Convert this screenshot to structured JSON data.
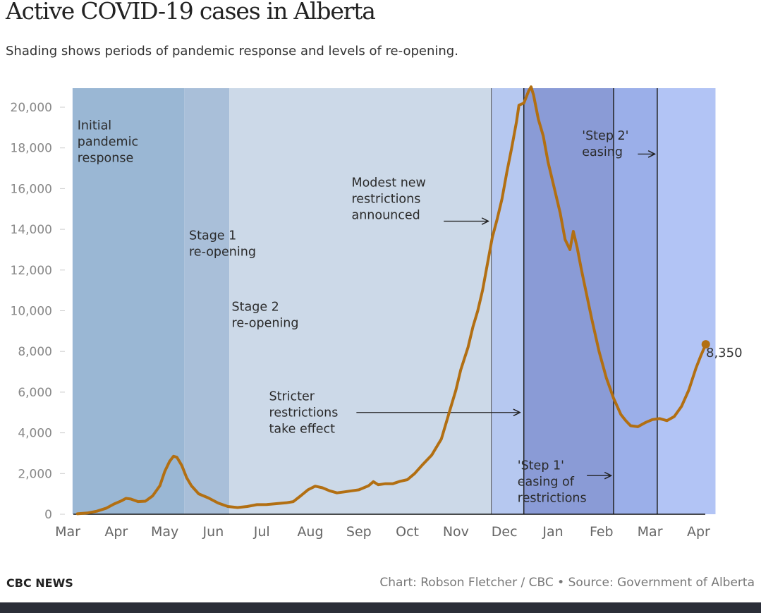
{
  "title": "Active COVID-19 cases in Alberta",
  "subtitle": "Shading shows periods of pandemic response and levels of re-opening.",
  "footer": {
    "brand": "CBC NEWS",
    "credit": "Chart: Robson Fletcher / CBC • Source: Government of Alberta"
  },
  "chart_data": {
    "type": "line",
    "title": "Active COVID-19 cases in Alberta",
    "subtitle": "Shading shows periods of pandemic response and levels of re-opening.",
    "xlabel": "",
    "ylabel": "",
    "x_ticks": [
      "Mar",
      "Apr",
      "May",
      "Jun",
      "Jul",
      "Aug",
      "Sep",
      "Oct",
      "Nov",
      "Dec",
      "Jan",
      "Feb",
      "Mar",
      "Apr"
    ],
    "ylim": [
      0,
      21000
    ],
    "y_ticks": [
      0,
      2000,
      4000,
      6000,
      8000,
      10000,
      12000,
      14000,
      16000,
      18000,
      20000
    ],
    "y_tick_labels": [
      "0",
      "2,000",
      "4,000",
      "6,000",
      "8,000",
      "10,000",
      "12,000",
      "14,000",
      "16,000",
      "18,000",
      "20,000"
    ],
    "grid": false,
    "line_color": "#b26f12",
    "series": [
      {
        "points": [
          [
            0.2,
            20
          ],
          [
            0.4,
            60
          ],
          [
            0.6,
            150
          ],
          [
            0.8,
            300
          ],
          [
            0.95,
            500
          ],
          [
            1.1,
            650
          ],
          [
            1.2,
            780
          ],
          [
            1.3,
            750
          ],
          [
            1.45,
            620
          ],
          [
            1.6,
            640
          ],
          [
            1.75,
            900
          ],
          [
            1.9,
            1400
          ],
          [
            2.0,
            2100
          ],
          [
            2.1,
            2600
          ],
          [
            2.18,
            2850
          ],
          [
            2.25,
            2800
          ],
          [
            2.35,
            2400
          ],
          [
            2.45,
            1800
          ],
          [
            2.55,
            1400
          ],
          [
            2.7,
            1000
          ],
          [
            2.9,
            800
          ],
          [
            3.1,
            550
          ],
          [
            3.3,
            380
          ],
          [
            3.5,
            330
          ],
          [
            3.7,
            380
          ],
          [
            3.9,
            470
          ],
          [
            4.1,
            480
          ],
          [
            4.3,
            520
          ],
          [
            4.5,
            560
          ],
          [
            4.65,
            620
          ],
          [
            4.8,
            900
          ],
          [
            4.95,
            1200
          ],
          [
            5.1,
            1380
          ],
          [
            5.25,
            1300
          ],
          [
            5.4,
            1150
          ],
          [
            5.55,
            1050
          ],
          [
            5.7,
            1100
          ],
          [
            5.85,
            1150
          ],
          [
            6.0,
            1200
          ],
          [
            6.2,
            1400
          ],
          [
            6.3,
            1600
          ],
          [
            6.4,
            1450
          ],
          [
            6.55,
            1500
          ],
          [
            6.7,
            1500
          ],
          [
            6.85,
            1620
          ],
          [
            7.0,
            1700
          ],
          [
            7.15,
            2000
          ],
          [
            7.3,
            2400
          ],
          [
            7.5,
            2900
          ],
          [
            7.7,
            3700
          ],
          [
            7.85,
            4900
          ],
          [
            8.0,
            6100
          ],
          [
            8.1,
            7100
          ],
          [
            8.25,
            8200
          ],
          [
            8.35,
            9200
          ],
          [
            8.45,
            10000
          ],
          [
            8.55,
            11000
          ],
          [
            8.65,
            12300
          ],
          [
            8.75,
            13600
          ],
          [
            8.85,
            14500
          ],
          [
            8.95,
            15500
          ],
          [
            9.05,
            16800
          ],
          [
            9.15,
            18000
          ],
          [
            9.25,
            19300
          ],
          [
            9.3,
            20100
          ],
          [
            9.4,
            20200
          ],
          [
            9.5,
            20800
          ],
          [
            9.55,
            21000
          ],
          [
            9.6,
            20600
          ],
          [
            9.7,
            19400
          ],
          [
            9.8,
            18600
          ],
          [
            9.9,
            17300
          ],
          [
            10.0,
            16300
          ],
          [
            10.15,
            14800
          ],
          [
            10.25,
            13500
          ],
          [
            10.35,
            13000
          ],
          [
            10.42,
            13900
          ],
          [
            10.5,
            13100
          ],
          [
            10.58,
            12100
          ],
          [
            10.65,
            11300
          ],
          [
            10.8,
            9600
          ],
          [
            10.95,
            8000
          ],
          [
            11.1,
            6700
          ],
          [
            11.25,
            5700
          ],
          [
            11.4,
            4900
          ],
          [
            11.5,
            4600
          ],
          [
            11.6,
            4350
          ],
          [
            11.75,
            4300
          ],
          [
            11.9,
            4500
          ],
          [
            12.05,
            4650
          ],
          [
            12.2,
            4700
          ],
          [
            12.35,
            4600
          ],
          [
            12.5,
            4800
          ],
          [
            12.65,
            5300
          ],
          [
            12.8,
            6100
          ],
          [
            12.95,
            7200
          ],
          [
            13.05,
            7800
          ],
          [
            13.15,
            8350
          ]
        ]
      }
    ],
    "end_point": {
      "x": 13.15,
      "y": 8350,
      "label": "8,350"
    },
    "shaded_periods": [
      {
        "x0": 0.1,
        "x1": 2.4,
        "color": "#9ab7d4"
      },
      {
        "x0": 2.4,
        "x1": 3.33,
        "color": "#a9bfd9"
      },
      {
        "x0": 3.33,
        "x1": 8.73,
        "color": "#ccd9e8"
      },
      {
        "x0": 8.73,
        "x1": 9.4,
        "color": "#b6c8f0"
      },
      {
        "x0": 9.4,
        "x1": 11.25,
        "color": "#8a9bd6"
      },
      {
        "x0": 11.25,
        "x1": 12.15,
        "color": "#9bafe9"
      },
      {
        "x0": 12.15,
        "x1": 13.35,
        "color": "#b2c4f5"
      }
    ],
    "vertical_lines": [
      {
        "x": 8.73,
        "color": "#555555",
        "width": 1
      },
      {
        "x": 9.4,
        "color": "#222222",
        "width": 1.5
      },
      {
        "x": 11.25,
        "color": "#222222",
        "width": 1.5
      },
      {
        "x": 12.15,
        "color": "#222222",
        "width": 1.5
      }
    ],
    "annotations": [
      {
        "lines": [
          "Initial",
          "pandemic",
          "response"
        ],
        "x": 0.2,
        "y": 18900
      },
      {
        "lines": [
          "Stage 1",
          "re-opening"
        ],
        "x": 2.5,
        "y": 13500
      },
      {
        "lines": [
          "Stage 2",
          "re-opening"
        ],
        "x": 3.38,
        "y": 10000
      },
      {
        "lines": [
          "Modest new",
          "restrictions",
          "announced"
        ],
        "x": 5.85,
        "y": 16100,
        "arrow": {
          "x0": 7.75,
          "x1": 8.67,
          "y": 14400
        }
      },
      {
        "lines": [
          "Stricter",
          "restrictions",
          "take effect"
        ],
        "x": 4.15,
        "y": 5600,
        "arrow": {
          "x0": 5.95,
          "x1": 9.32,
          "y": 5000
        }
      },
      {
        "lines": [
          "'Step 1'",
          "easing of",
          "restrictions"
        ],
        "x": 9.27,
        "y": 2200,
        "arrow": {
          "x0": 10.7,
          "x1": 11.2,
          "y": 1900
        }
      },
      {
        "lines": [
          "'Step 2'",
          "easing"
        ],
        "x": 10.6,
        "y": 18400,
        "arrow": {
          "x0": 11.75,
          "x1": 12.1,
          "y": 17700
        }
      }
    ]
  }
}
